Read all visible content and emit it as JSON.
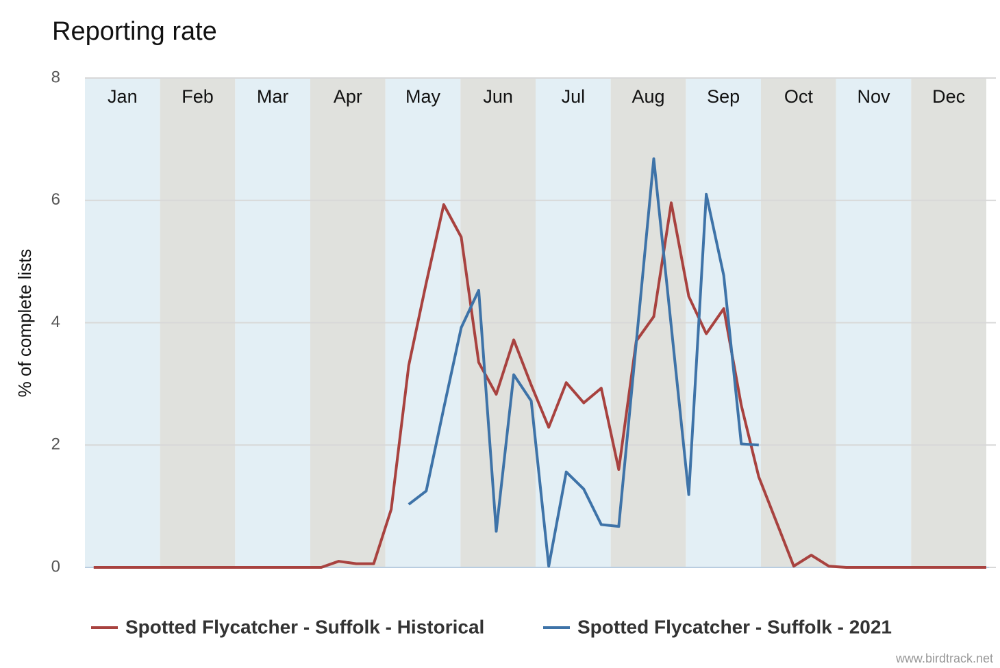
{
  "chart_data": {
    "type": "line",
    "title": "Reporting rate",
    "ylabel": "% of complete lists",
    "source": "www.birdtrack.net",
    "months": [
      "Jan",
      "Feb",
      "Mar",
      "Apr",
      "May",
      "Jun",
      "Jul",
      "Aug",
      "Sep",
      "Oct",
      "Nov",
      "Dec"
    ],
    "month_colors": [
      "#e3eff5",
      "#e0e1dd"
    ],
    "x": [
      1,
      2,
      3,
      4,
      5,
      6,
      7,
      8,
      9,
      10,
      11,
      12,
      13,
      14,
      15,
      16,
      17,
      18,
      19,
      20,
      21,
      22,
      23,
      24,
      25,
      26,
      27,
      28,
      29,
      30,
      31,
      32,
      33,
      34,
      35,
      36,
      37,
      38,
      39,
      40,
      41,
      42,
      43,
      44,
      45,
      46,
      47,
      48,
      49,
      50,
      51,
      52
    ],
    "xlim": [
      0.5,
      52
    ],
    "ylim": [
      0,
      8
    ],
    "yticks": [
      0,
      2,
      4,
      6,
      8
    ],
    "grid": true,
    "series": [
      {
        "name": "Spotted Flycatcher - Suffolk - Historical",
        "color": "#a8423f",
        "values": [
          0,
          0,
          0,
          0,
          0,
          0,
          0,
          0,
          0,
          0,
          0,
          0,
          0,
          0,
          0.1,
          0.06,
          0.06,
          0.95,
          3.3,
          4.65,
          5.93,
          5.4,
          3.35,
          2.83,
          3.72,
          2.98,
          2.29,
          3.02,
          2.69,
          2.93,
          1.6,
          3.7,
          4.1,
          5.96,
          4.43,
          3.82,
          4.23,
          2.65,
          1.48,
          0.75,
          0.02,
          0.2,
          0.02,
          0,
          0,
          0,
          0,
          0,
          0,
          0,
          0,
          0
        ]
      },
      {
        "name": "Spotted Flycatcher - Suffolk - 2021",
        "color": "#3e73a8",
        "values": [
          null,
          null,
          null,
          null,
          null,
          null,
          null,
          null,
          null,
          null,
          null,
          null,
          null,
          null,
          null,
          null,
          null,
          null,
          1.03,
          1.25,
          2.6,
          3.92,
          4.53,
          0.59,
          3.15,
          2.72,
          0.02,
          1.56,
          1.28,
          0.7,
          0.67,
          3.67,
          6.68,
          3.94,
          1.19,
          6.1,
          4.77,
          2.02,
          2.0,
          null,
          null,
          null,
          null,
          null,
          null,
          null,
          null,
          null,
          null,
          null,
          null,
          null
        ]
      }
    ]
  }
}
